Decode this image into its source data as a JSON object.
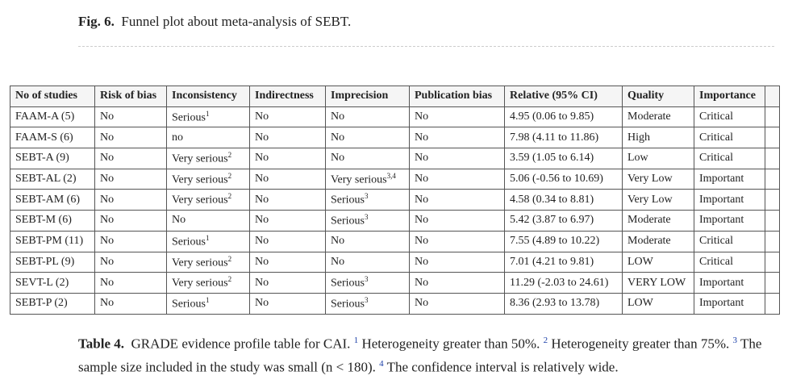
{
  "figure_caption": {
    "label": "Fig. 6.",
    "text": "Funnel plot about meta-analysis of SEBT."
  },
  "table": {
    "header": [
      "No of studies",
      "Risk of bias",
      "Inconsistency",
      "Indirectness",
      "Imprecision",
      "Publication bias",
      "Relative (95% CI)",
      "Quality",
      "Importance"
    ],
    "rows": [
      [
        "FAAM-A (5)",
        "No",
        {
          "text": "Serious",
          "sup": "1"
        },
        "No",
        "No",
        "No",
        "4.95 (0.06 to 9.85)",
        "Moderate",
        "Critical"
      ],
      [
        "FAAM-S (6)",
        "No",
        "no",
        "No",
        "No",
        "No",
        "7.98 (4.11 to 11.86)",
        "High",
        "Critical"
      ],
      [
        "SEBT-A (9)",
        "No",
        {
          "text": "Very serious",
          "sup": "2"
        },
        "No",
        "No",
        "No",
        "3.59 (1.05 to 6.14)",
        "Low",
        "Critical"
      ],
      [
        "SEBT-AL (2)",
        "No",
        {
          "text": "Very serious",
          "sup": "2"
        },
        "No",
        {
          "text": "Very serious",
          "sup": "3,4"
        },
        "No",
        "5.06 (-0.56 to 10.69)",
        "Very Low",
        "Important"
      ],
      [
        "SEBT-AM (6)",
        "No",
        {
          "text": "Very serious",
          "sup": "2"
        },
        "No",
        {
          "text": "Serious",
          "sup": "3"
        },
        "No",
        "4.58 (0.34 to 8.81)",
        "Very Low",
        "Important"
      ],
      [
        "SEBT-M (6)",
        "No",
        "No",
        "No",
        {
          "text": "Serious",
          "sup": "3"
        },
        "No",
        "5.42 (3.87 to 6.97)",
        "Moderate",
        "Important"
      ],
      [
        "SEBT-PM (11)",
        "No",
        {
          "text": "Serious",
          "sup": "1"
        },
        "No",
        "No",
        "No",
        "7.55 (4.89 to 10.22)",
        "Moderate",
        "Critical"
      ],
      [
        "SEBT-PL (9)",
        "No",
        {
          "text": "Very serious",
          "sup": "2"
        },
        "No",
        "No",
        "No",
        "7.01 (4.21 to 9.81)",
        "LOW",
        "Critical"
      ],
      [
        "SEVT-L (2)",
        "No",
        {
          "text": "Very serious",
          "sup": "2"
        },
        "No",
        {
          "text": "Serious",
          "sup": "3"
        },
        "No",
        "11.29 (-2.03 to 24.61)",
        "VERY LOW",
        "Important"
      ],
      [
        "SEBT-P (2)",
        "No",
        {
          "text": "Serious",
          "sup": "1"
        },
        "No",
        {
          "text": "Serious",
          "sup": "3"
        },
        "No",
        "8.36 (2.93 to 13.78)",
        "LOW",
        "Important"
      ]
    ]
  },
  "table_caption": {
    "label": "Table 4.",
    "title": "GRADE evidence profile table for CAI.",
    "notes": [
      {
        "mark": "1",
        "text": "Heterogeneity greater than 50%."
      },
      {
        "mark": "2",
        "text": "Heterogeneity greater than 75%."
      },
      {
        "mark": "3",
        "text": "The sample size included in the study was small (n < 180)."
      },
      {
        "mark": "4",
        "text": "The confidence interval is relatively wide."
      }
    ]
  }
}
